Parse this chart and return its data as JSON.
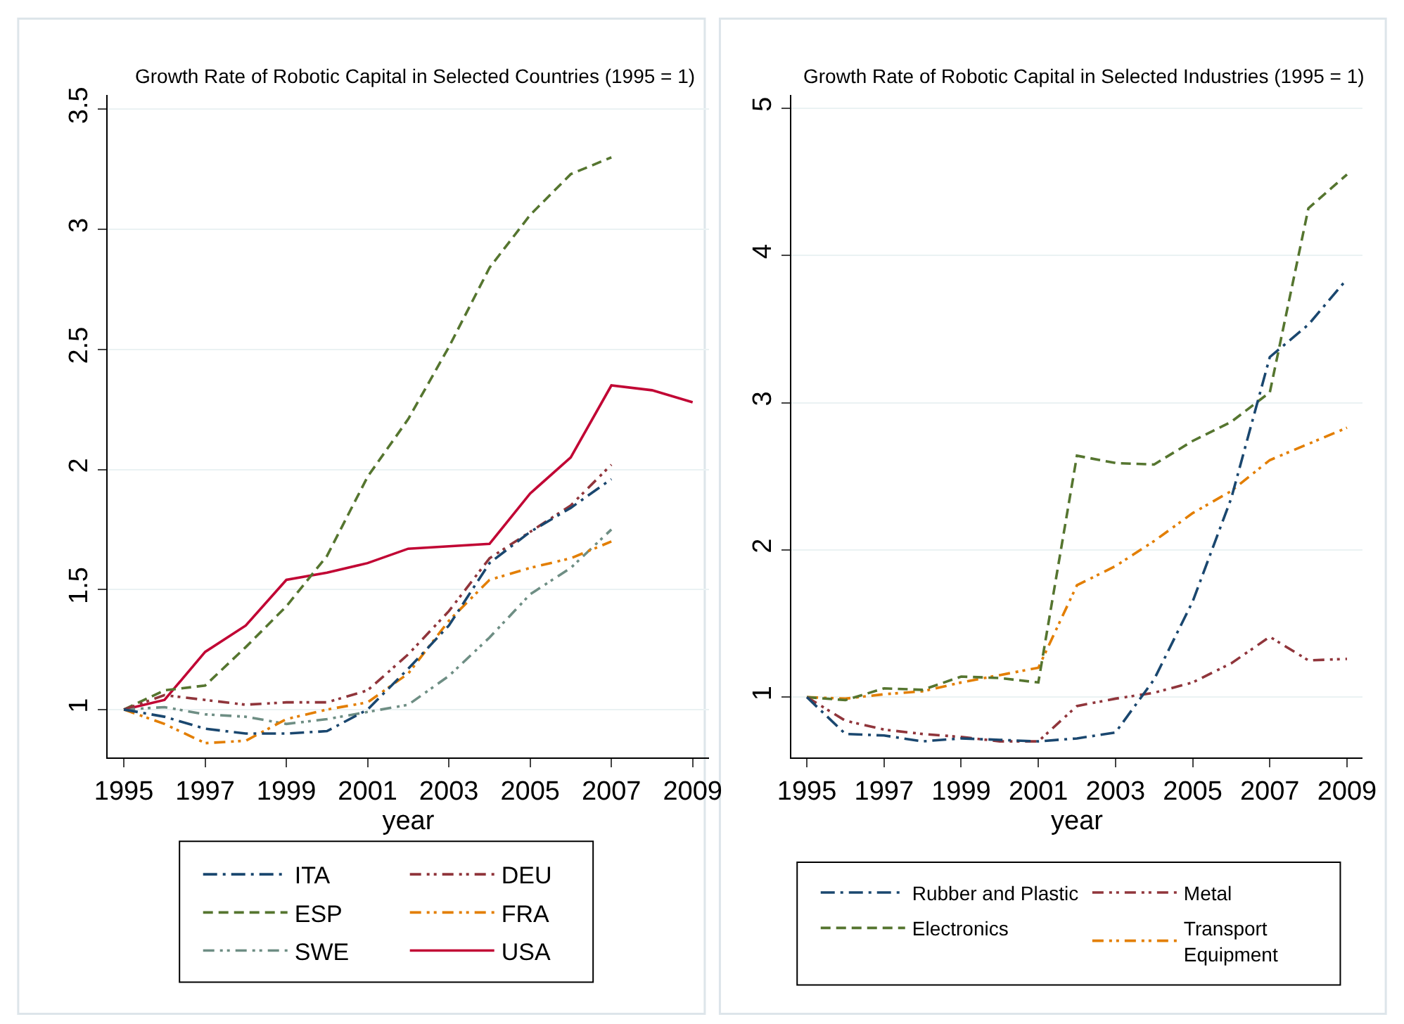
{
  "chart_data": [
    {
      "type": "line",
      "title": "Growth Rate of Robotic Capital in Selected Countries (1995 = 1)",
      "xlabel": "year",
      "x": [
        1995,
        1996,
        1997,
        1998,
        1999,
        2000,
        2001,
        2002,
        2003,
        2004,
        2005,
        2006,
        2007,
        2008,
        2009
      ],
      "xlim": [
        1994.6,
        2009.4
      ],
      "xticks": [
        1995,
        1997,
        1999,
        2001,
        2003,
        2005,
        2007,
        2009
      ],
      "ylim": [
        0.8,
        3.56
      ],
      "yticks": [
        1,
        1.5,
        2,
        2.5,
        3,
        3.5
      ],
      "grid": "y",
      "legend": "bottom",
      "marker": "none",
      "series": [
        {
          "name": "ITA",
          "color": "#1a476f",
          "line_style": "dashdot",
          "values": [
            1,
            0.97,
            0.92,
            0.9,
            0.9,
            0.91,
            1.0,
            1.17,
            1.35,
            1.61,
            1.74,
            1.84,
            1.96,
            null,
            null
          ]
        },
        {
          "name": "DEU",
          "color": "#90353b",
          "line_style": "longdashdot",
          "values": [
            1,
            1.06,
            1.04,
            1.02,
            1.03,
            1.03,
            1.08,
            1.23,
            1.41,
            1.63,
            1.74,
            1.85,
            2.02,
            null,
            null
          ]
        },
        {
          "name": "ESP",
          "color": "#55752f",
          "line_style": "dashed",
          "values": [
            1,
            1.08,
            1.1,
            1.26,
            1.43,
            1.64,
            1.97,
            2.21,
            2.51,
            2.84,
            3.06,
            3.23,
            3.3,
            null,
            null
          ]
        },
        {
          "name": "FRA",
          "color": "#e37e00",
          "line_style": "longdashdot",
          "values": [
            1,
            0.94,
            0.86,
            0.87,
            0.96,
            1.0,
            1.03,
            1.15,
            1.37,
            1.54,
            1.59,
            1.63,
            1.7,
            null,
            null
          ]
        },
        {
          "name": "SWE",
          "color": "#6e8e84",
          "line_style": "longdashdot",
          "values": [
            1,
            1.01,
            0.98,
            0.97,
            0.94,
            0.96,
            0.99,
            1.02,
            1.14,
            1.3,
            1.48,
            1.59,
            1.75,
            null,
            null
          ]
        },
        {
          "name": "USA",
          "color": "#c10534",
          "line_style": "solid",
          "values": [
            1,
            1.04,
            1.24,
            1.35,
            1.54,
            1.57,
            1.61,
            1.67,
            1.68,
            1.69,
            1.9,
            2.05,
            2.35,
            2.33,
            2.28
          ]
        }
      ]
    },
    {
      "type": "line",
      "title": "Growth Rate of Robotic Capital in Selected Industries (1995 = 1)",
      "xlabel": "year",
      "x": [
        1995,
        1996,
        1997,
        1998,
        1999,
        2000,
        2001,
        2002,
        2003,
        2004,
        2005,
        2006,
        2007,
        2008,
        2009
      ],
      "xlim": [
        1994.6,
        2009.4
      ],
      "xticks": [
        1995,
        1997,
        1999,
        2001,
        2003,
        2005,
        2007,
        2009
      ],
      "ylim": [
        0.59,
        5.09
      ],
      "yticks": [
        1,
        2,
        3,
        4,
        5
      ],
      "grid": "y",
      "legend": "bottom",
      "marker": "none",
      "series": [
        {
          "name": "Rubber and Plastic",
          "color": "#1a476f",
          "line_style": "dashdot",
          "values": [
            1,
            0.75,
            0.74,
            0.7,
            0.72,
            0.71,
            0.7,
            0.72,
            0.76,
            1.12,
            1.65,
            2.35,
            3.31,
            3.53,
            3.84
          ]
        },
        {
          "name": "Metal",
          "color": "#90353b",
          "line_style": "longdashdot",
          "values": [
            1,
            0.84,
            0.78,
            0.75,
            0.73,
            0.7,
            0.7,
            0.94,
            0.99,
            1.03,
            1.1,
            1.23,
            1.41,
            1.25,
            1.26
          ]
        },
        {
          "name": "Electronics",
          "color": "#55752f",
          "line_style": "dashed",
          "values": [
            1,
            0.98,
            1.06,
            1.05,
            1.14,
            1.13,
            1.1,
            2.64,
            2.59,
            2.58,
            2.74,
            2.87,
            3.07,
            4.32,
            4.55
          ]
        },
        {
          "name": "Transport\nEquipment",
          "color": "#e37e00",
          "line_style": "longdashdot",
          "values": [
            1,
            0.99,
            1.02,
            1.04,
            1.1,
            1.15,
            1.2,
            1.76,
            1.89,
            2.06,
            2.25,
            2.4,
            2.61,
            2.72,
            2.83
          ]
        }
      ]
    }
  ]
}
